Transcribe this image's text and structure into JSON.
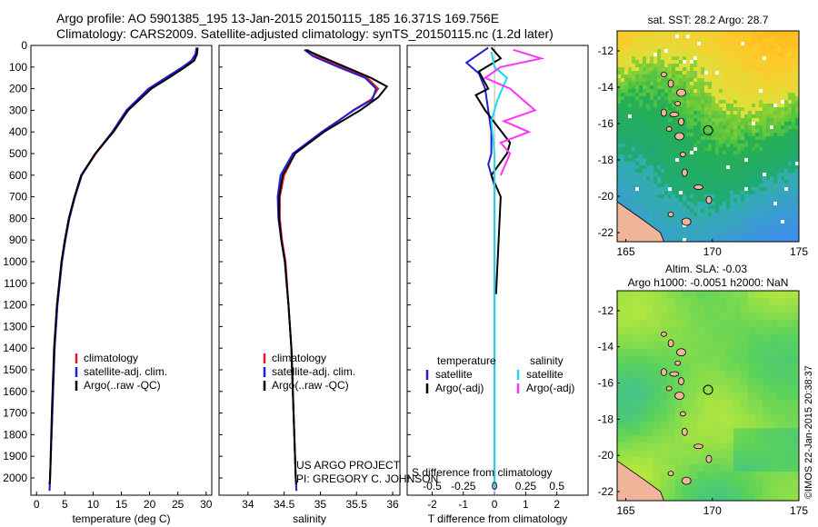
{
  "header": {
    "line1": "Argo profile: AO 5901385_195 13-Jan-2015 20150115_185 16.371S 169.756E",
    "line2": "Climatology: CARS2009. Satellite-adjusted climatology: synTS_20150115.nc (1.2d later)"
  },
  "colors": {
    "climatology": "#e41a1c",
    "satellite": "#1f1fd6",
    "argo": "#000000",
    "salinity_sat": "#22d8e8",
    "argo_adj": "#ff33ff",
    "land": "#f0b49a"
  },
  "annotations": {
    "project": "US ARGO PROJECT",
    "pi": "PI: GREGORY C. JOHNSON"
  },
  "stamp": "©IMOS 22-Jan-2015 20:38:37",
  "chart_data": [
    {
      "type": "line",
      "id": "temperature",
      "xlabel": "temperature (deg C)",
      "ylabel": "",
      "xlim": [
        -1,
        31
      ],
      "ylim": [
        2080,
        0
      ],
      "xticks": [
        0,
        5,
        10,
        15,
        20,
        25,
        30
      ],
      "yticks": [
        0,
        100,
        200,
        300,
        400,
        500,
        600,
        700,
        800,
        900,
        1000,
        1100,
        1200,
        1300,
        1400,
        1500,
        1600,
        1700,
        1800,
        1900,
        2000
      ],
      "legend": [
        "climatology",
        "satellite-adj. clim.",
        "Argo(..raw -QC)"
      ],
      "series": [
        {
          "name": "climatology",
          "color": "#e41a1c",
          "points": [
            [
              28.4,
              20
            ],
            [
              28.2,
              40
            ],
            [
              27.6,
              70
            ],
            [
              26,
              100
            ],
            [
              23,
              150
            ],
            [
              20,
              200
            ],
            [
              16,
              300
            ],
            [
              13.5,
              400
            ],
            [
              10.5,
              500
            ],
            [
              8,
              600
            ],
            [
              6.8,
              700
            ],
            [
              5.8,
              800
            ],
            [
              5.1,
              900
            ],
            [
              4.5,
              1000
            ],
            [
              3.7,
              1200
            ],
            [
              3.2,
              1400
            ],
            [
              2.8,
              1700
            ],
            [
              2.4,
              2000
            ],
            [
              2.3,
              2060
            ]
          ]
        },
        {
          "name": "satellite-adj. clim.",
          "color": "#1f1fd6",
          "points": [
            [
              28.3,
              10
            ],
            [
              28.1,
              40
            ],
            [
              27.4,
              70
            ],
            [
              25.8,
              100
            ],
            [
              22.8,
              150
            ],
            [
              19.8,
              200
            ],
            [
              15.9,
              300
            ],
            [
              13.4,
              400
            ],
            [
              10.4,
              500
            ],
            [
              8,
              600
            ],
            [
              6.8,
              700
            ],
            [
              5.8,
              800
            ],
            [
              5.1,
              900
            ],
            [
              4.5,
              1000
            ],
            [
              3.7,
              1200
            ],
            [
              3.2,
              1400
            ],
            [
              2.8,
              1700
            ],
            [
              2.4,
              2000
            ],
            [
              2.3,
              2060
            ]
          ]
        },
        {
          "name": "Argo(..raw -QC)",
          "color": "#000000",
          "points": [
            [
              28.5,
              10
            ],
            [
              28.4,
              40
            ],
            [
              27.9,
              70
            ],
            [
              26.3,
              100
            ],
            [
              23.4,
              150
            ],
            [
              20.3,
              200
            ],
            [
              16.2,
              300
            ],
            [
              13.6,
              400
            ],
            [
              10.4,
              500
            ],
            [
              7.9,
              600
            ],
            [
              6.7,
              700
            ],
            [
              5.7,
              800
            ],
            [
              5.0,
              900
            ],
            [
              4.4,
              1000
            ],
            [
              3.6,
              1200
            ],
            [
              3.1,
              1400
            ],
            [
              2.7,
              1700
            ],
            [
              2.4,
              2000
            ],
            [
              2.3,
              2030
            ]
          ]
        }
      ]
    },
    {
      "type": "line",
      "id": "salinity",
      "xlabel": "salinity",
      "ylabel": "",
      "xlim": [
        33.6,
        36.1
      ],
      "ylim": [
        2080,
        0
      ],
      "xticks": [
        34,
        34.5,
        35,
        35.5,
        36
      ],
      "legend": [
        "climatology",
        "satellite-adj. clim.",
        "Argo(..raw -QC)"
      ],
      "series": [
        {
          "name": "climatology",
          "color": "#e41a1c",
          "points": [
            [
              34.82,
              20
            ],
            [
              34.95,
              50
            ],
            [
              35.3,
              100
            ],
            [
              35.65,
              150
            ],
            [
              35.8,
              200
            ],
            [
              35.7,
              250
            ],
            [
              35.45,
              300
            ],
            [
              35.05,
              400
            ],
            [
              34.65,
              500
            ],
            [
              34.5,
              600
            ],
            [
              34.44,
              700
            ],
            [
              34.44,
              800
            ],
            [
              34.47,
              900
            ],
            [
              34.52,
              1000
            ],
            [
              34.56,
              1200
            ],
            [
              34.6,
              1400
            ],
            [
              34.63,
              1700
            ],
            [
              34.66,
              2000
            ],
            [
              34.67,
              2060
            ]
          ]
        },
        {
          "name": "satellite-adj. clim.",
          "color": "#1f1fd6",
          "points": [
            [
              34.78,
              20
            ],
            [
              34.9,
              50
            ],
            [
              35.25,
              100
            ],
            [
              35.62,
              150
            ],
            [
              35.77,
              200
            ],
            [
              35.72,
              250
            ],
            [
              35.46,
              300
            ],
            [
              35.02,
              400
            ],
            [
              34.62,
              500
            ],
            [
              34.45,
              600
            ],
            [
              34.41,
              700
            ],
            [
              34.42,
              800
            ],
            [
              34.46,
              900
            ],
            [
              34.51,
              1000
            ],
            [
              34.56,
              1200
            ],
            [
              34.6,
              1400
            ],
            [
              34.63,
              1700
            ],
            [
              34.66,
              2000
            ],
            [
              34.67,
              2060
            ]
          ]
        },
        {
          "name": "Argo(..raw -QC)",
          "color": "#000000",
          "points": [
            [
              34.8,
              20
            ],
            [
              35.0,
              50
            ],
            [
              35.35,
              100
            ],
            [
              35.7,
              150
            ],
            [
              35.92,
              190
            ],
            [
              35.8,
              240
            ],
            [
              35.55,
              300
            ],
            [
              35.05,
              400
            ],
            [
              34.65,
              500
            ],
            [
              34.48,
              600
            ],
            [
              34.43,
              700
            ],
            [
              34.43,
              800
            ],
            [
              34.46,
              900
            ],
            [
              34.51,
              1000
            ],
            [
              34.56,
              1200
            ],
            [
              34.6,
              1400
            ],
            [
              34.63,
              1700
            ],
            [
              34.66,
              2000
            ],
            [
              34.67,
              2030
            ]
          ]
        }
      ]
    },
    {
      "type": "line",
      "id": "differences",
      "xlabel": "T difference from climatology",
      "xlabel2": "S difference from climatology",
      "xlim": [
        -2.8,
        3
      ],
      "ylim": [
        2080,
        0
      ],
      "xticks": [
        -2,
        -1,
        0,
        1,
        2
      ],
      "xticks_s": [
        -0.5,
        -0.25,
        0,
        0.25,
        0.5
      ],
      "legend_titles": [
        "temperature",
        "salinity"
      ],
      "legend": [
        "satellite",
        "Argo(-adj)",
        "satellite",
        "Argo(-adj)"
      ],
      "series": [
        {
          "name": "satellite",
          "quantity": "temperature",
          "color": "#1f1fd6",
          "points": [
            [
              -0.2,
              10
            ],
            [
              -0.9,
              80
            ],
            [
              -0.5,
              130
            ],
            [
              -0.3,
              200
            ],
            [
              -0.2,
              300
            ],
            [
              -0.1,
              400
            ],
            [
              -0.1,
              500
            ],
            [
              -0.2,
              550
            ],
            [
              0,
              650
            ],
            [
              0,
              800
            ],
            [
              0,
              1000
            ],
            [
              0,
              2050
            ]
          ]
        },
        {
          "name": "Argo(-adj)",
          "quantity": "temperature",
          "color": "#000000",
          "points": [
            [
              -0.1,
              10
            ],
            [
              0.2,
              60
            ],
            [
              -0.5,
              120
            ],
            [
              -0.2,
              200
            ],
            [
              -0.6,
              230
            ],
            [
              -0.3,
              300
            ],
            [
              0.5,
              450
            ],
            [
              0.4,
              500
            ],
            [
              -0.1,
              600
            ],
            [
              0.2,
              700
            ],
            [
              0.1,
              1000
            ],
            [
              0.05,
              1150
            ]
          ]
        },
        {
          "name": "satellite",
          "quantity": "salinity",
          "color": "#22d8e8",
          "points": [
            [
              -0.1,
              30
            ],
            [
              0,
              100
            ],
            [
              0.4,
              150
            ],
            [
              0.1,
              250
            ],
            [
              -0.1,
              350
            ],
            [
              0,
              500
            ],
            [
              0,
              2050
            ]
          ]
        },
        {
          "name": "Argo(-adj)",
          "quantity": "salinity",
          "color": "#ff33ff",
          "points": [
            [
              0.6,
              20
            ],
            [
              1.5,
              60
            ],
            [
              0.2,
              100
            ],
            [
              -0.3,
              150
            ],
            [
              0.5,
              200
            ],
            [
              1.3,
              300
            ],
            [
              0.3,
              350
            ],
            [
              1.1,
              400
            ],
            [
              0.2,
              450
            ],
            [
              0.5,
              500
            ],
            [
              0.2,
              600
            ]
          ]
        }
      ]
    },
    {
      "type": "heatmap",
      "id": "sst_map",
      "title": "sat. SST: 28.2  Argo: 28.7",
      "xlim": [
        164.5,
        175
      ],
      "ylim": [
        -22.5,
        -10.9
      ],
      "xticks": [
        165,
        170,
        175
      ],
      "yticks": [
        -12,
        -14,
        -16,
        -18,
        -20,
        -22
      ],
      "marker": {
        "lon": 169.756,
        "lat": -16.371
      }
    },
    {
      "type": "heatmap",
      "id": "sla_map",
      "title": "Altim. SLA: -0.03",
      "title2": "Argo h1000: -0.0051  h2000: NaN",
      "xlim": [
        164.5,
        175
      ],
      "ylim": [
        -22.5,
        -10.9
      ],
      "xticks": [
        165,
        170,
        175
      ],
      "yticks": [
        -12,
        -14,
        -16,
        -18,
        -20,
        -22
      ],
      "marker": {
        "lon": 169.756,
        "lat": -16.371
      }
    }
  ]
}
